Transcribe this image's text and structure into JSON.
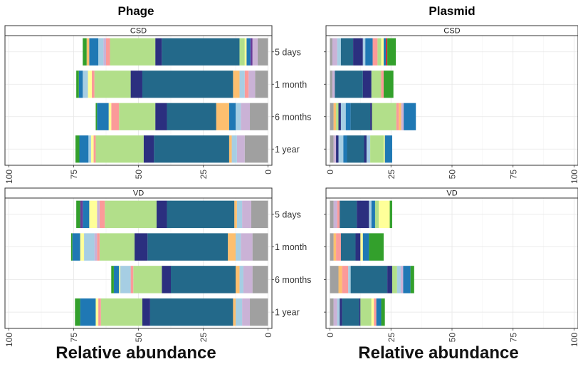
{
  "figure": {
    "phage_title": "Phage",
    "plasmid_title": "Plasmid",
    "phage_xlabel": "Relative abundance",
    "plasmid_xlabel": "Relative abundance"
  },
  "chart_data": [
    {
      "type": "bar",
      "orientation": "horizontal-stacked",
      "panel_group": "Phage",
      "facet": "CSD",
      "categories": [
        "5 days",
        "1 month",
        "6 months",
        "1 year"
      ],
      "xlim": [
        100,
        0
      ],
      "x_reversed": true,
      "ticks": [
        100,
        75,
        50,
        25,
        0
      ],
      "grid": true,
      "stacks": [
        [
          [
            "#A0A0A0",
            4.0
          ],
          [
            "#CAB2D6",
            2.0
          ],
          [
            "#6A3D9A",
            0.8
          ],
          [
            "#1F78B4",
            1.5
          ],
          [
            "#FFFF99",
            0.7
          ],
          [
            "#B2DF8A",
            2.0
          ],
          [
            "#23698A",
            30.0
          ],
          [
            "#2B2F7F",
            2.5
          ],
          [
            "#B2DF8A",
            17.5
          ],
          [
            "#FB9A99",
            1.5
          ],
          [
            "#CAB2D6",
            1.0
          ],
          [
            "#A6CEE3",
            2.0
          ],
          [
            "#1F78B4",
            3.5
          ],
          [
            "#FDBF6F",
            1.0
          ],
          [
            "#33A02C",
            1.5
          ]
        ],
        [
          [
            "#A0A0A0",
            5.0
          ],
          [
            "#CAB2D6",
            2.5
          ],
          [
            "#FB9A99",
            1.5
          ],
          [
            "#A6CEE3",
            2.0
          ],
          [
            "#FDBF6F",
            2.5
          ],
          [
            "#23698A",
            35.0
          ],
          [
            "#2B2F7F",
            4.5
          ],
          [
            "#B2DF8A",
            14.0
          ],
          [
            "#FB9A99",
            1.0
          ],
          [
            "#FFFF99",
            1.5
          ],
          [
            "#A6CEE3",
            2.0
          ],
          [
            "#1F78B4",
            1.5
          ],
          [
            "#33A02C",
            1.0
          ]
        ],
        [
          [
            "#A0A0A0",
            7.0
          ],
          [
            "#CAB2D6",
            3.5
          ],
          [
            "#A6CEE3",
            2.0
          ],
          [
            "#1F78B4",
            2.5
          ],
          [
            "#FDBF6F",
            5.0
          ],
          [
            "#23698A",
            19.0
          ],
          [
            "#2B2F7F",
            4.5
          ],
          [
            "#B2DF8A",
            14.0
          ],
          [
            "#FB9A99",
            3.0
          ],
          [
            "#FFFF99",
            1.0
          ],
          [
            "#1F78B4",
            4.5
          ],
          [
            "#33A02C",
            0.5
          ]
        ],
        [
          [
            "#A0A0A0",
            9.0
          ],
          [
            "#CAB2D6",
            3.0
          ],
          [
            "#A6CEE3",
            2.0
          ],
          [
            "#FDBF6F",
            1.0
          ],
          [
            "#23698A",
            29.0
          ],
          [
            "#2B2F7F",
            4.0
          ],
          [
            "#B2DF8A",
            18.5
          ],
          [
            "#FB9A99",
            0.8
          ],
          [
            "#FFFF99",
            1.0
          ],
          [
            "#A6CEE3",
            1.0
          ],
          [
            "#1F78B4",
            3.5
          ],
          [
            "#33A02C",
            1.5
          ]
        ]
      ]
    },
    {
      "type": "bar",
      "orientation": "horizontal-stacked",
      "panel_group": "Plasmid",
      "facet": "CSD",
      "categories": [
        "5 days",
        "1 month",
        "6 months",
        "1 year"
      ],
      "xlim": [
        0,
        100
      ],
      "ticks": [
        0,
        25,
        50,
        75,
        100
      ],
      "grid": true,
      "stacks": [
        [
          [
            "#A0A0A0",
            1.0
          ],
          [
            "#CAB2D6",
            2.0
          ],
          [
            "#A6CEE3",
            1.5
          ],
          [
            "#23698A",
            5.0
          ],
          [
            "#2B2F7F",
            4.0
          ],
          [
            "#A6CEE3",
            1.0
          ],
          [
            "#1F78B4",
            3.0
          ],
          [
            "#FB9A99",
            2.0
          ],
          [
            "#B2DF8A",
            1.5
          ],
          [
            "#FFFF99",
            1.0
          ],
          [
            "#1F78B4",
            1.0
          ],
          [
            "#E31A1C",
            0.5
          ],
          [
            "#33A02C",
            3.5
          ]
        ],
        [
          [
            "#A0A0A0",
            1.0
          ],
          [
            "#CAB2D6",
            1.0
          ],
          [
            "#23698A",
            11.5
          ],
          [
            "#2B2F7F",
            3.5
          ],
          [
            "#B2DF8A",
            4.0
          ],
          [
            "#FB9A99",
            1.0
          ],
          [
            "#33A02C",
            4.0
          ]
        ],
        [
          [
            "#A0A0A0",
            1.5
          ],
          [
            "#FDBF6F",
            1.0
          ],
          [
            "#B2DF8A",
            1.0
          ],
          [
            "#2B2F7F",
            1.0
          ],
          [
            "#A6CEE3",
            2.0
          ],
          [
            "#1F78B4",
            2.0
          ],
          [
            "#23698A",
            8.0
          ],
          [
            "#2B2F7F",
            0.7
          ],
          [
            "#B2DF8A",
            10.0
          ],
          [
            "#FB9A99",
            1.0
          ],
          [
            "#FDBF6F",
            1.0
          ],
          [
            "#CAB2D6",
            1.0
          ],
          [
            "#1F78B4",
            5.0
          ]
        ],
        [
          [
            "#A0A0A0",
            1.5
          ],
          [
            "#CAB2D6",
            1.0
          ],
          [
            "#2B2F7F",
            1.0
          ],
          [
            "#A6CEE3",
            2.0
          ],
          [
            "#1F78B4",
            1.5
          ],
          [
            "#23698A",
            7.0
          ],
          [
            "#2B2F7F",
            1.0
          ],
          [
            "#A6CEE3",
            1.5
          ],
          [
            "#B2DF8A",
            5.5
          ],
          [
            "#FFFF99",
            0.5
          ],
          [
            "#1F78B4",
            3.0
          ]
        ]
      ]
    },
    {
      "type": "bar",
      "orientation": "horizontal-stacked",
      "panel_group": "Phage",
      "facet": "VD",
      "categories": [
        "5 days",
        "1 month",
        "6 months",
        "1 year"
      ],
      "xlim": [
        100,
        0
      ],
      "x_reversed": true,
      "ticks": [
        100,
        75,
        50,
        25,
        0
      ],
      "grid": true,
      "stacks": [
        [
          [
            "#A0A0A0",
            6.5
          ],
          [
            "#CAB2D6",
            3.5
          ],
          [
            "#A6CEE3",
            2.0
          ],
          [
            "#FDBF6F",
            1.0
          ],
          [
            "#23698A",
            26.0
          ],
          [
            "#2B2F7F",
            4.0
          ],
          [
            "#B2DF8A",
            20.0
          ],
          [
            "#FB9A99",
            2.0
          ],
          [
            "#CAB2D6",
            1.0
          ],
          [
            "#FFFF99",
            3.0
          ],
          [
            "#1F78B4",
            2.5
          ],
          [
            "#6A3D9A",
            1.0
          ],
          [
            "#33A02C",
            1.5
          ]
        ],
        [
          [
            "#A0A0A0",
            6.0
          ],
          [
            "#CAB2D6",
            4.5
          ],
          [
            "#A6CEE3",
            2.0
          ],
          [
            "#FDBF6F",
            3.0
          ],
          [
            "#23698A",
            31.0
          ],
          [
            "#2B2F7F",
            5.0
          ],
          [
            "#B2DF8A",
            13.5
          ],
          [
            "#FB9A99",
            1.0
          ],
          [
            "#CAB2D6",
            1.0
          ],
          [
            "#A6CEE3",
            4.0
          ],
          [
            "#FFFF99",
            1.5
          ],
          [
            "#1F78B4",
            3.0
          ],
          [
            "#33A02C",
            0.5
          ]
        ],
        [
          [
            "#A0A0A0",
            6.0
          ],
          [
            "#CAB2D6",
            3.5
          ],
          [
            "#A6CEE3",
            1.5
          ],
          [
            "#FDBF6F",
            1.5
          ],
          [
            "#23698A",
            25.0
          ],
          [
            "#2B2F7F",
            3.5
          ],
          [
            "#B2DF8A",
            11.0
          ],
          [
            "#FB9A99",
            1.0
          ],
          [
            "#A6CEE3",
            4.0
          ],
          [
            "#FFFF99",
            0.5
          ],
          [
            "#1F78B4",
            2.0
          ],
          [
            "#33A02C",
            1.0
          ]
        ],
        [
          [
            "#A0A0A0",
            7.0
          ],
          [
            "#CAB2D6",
            3.0
          ],
          [
            "#A6CEE3",
            2.5
          ],
          [
            "#FDBF6F",
            1.0
          ],
          [
            "#23698A",
            32.0
          ],
          [
            "#2B2F7F",
            3.0
          ],
          [
            "#B2DF8A",
            16.0
          ],
          [
            "#FB9A99",
            1.0
          ],
          [
            "#FFFF99",
            1.0
          ],
          [
            "#1F78B4",
            6.0
          ],
          [
            "#33A02C",
            2.0
          ]
        ]
      ]
    },
    {
      "type": "bar",
      "orientation": "horizontal-stacked",
      "panel_group": "Plasmid",
      "facet": "VD",
      "categories": [
        "5 days",
        "1 month",
        "6 months",
        "1 year"
      ],
      "xlim": [
        0,
        100
      ],
      "ticks": [
        0,
        25,
        50,
        75,
        100
      ],
      "grid": true,
      "stacks": [
        [
          [
            "#A0A0A0",
            1.5
          ],
          [
            "#CAB2D6",
            1.5
          ],
          [
            "#FB9A99",
            1.0
          ],
          [
            "#23698A",
            7.0
          ],
          [
            "#2B2F7F",
            5.0
          ],
          [
            "#A6CEE3",
            1.0
          ],
          [
            "#1F78B4",
            1.5
          ],
          [
            "#B2DF8A",
            1.5
          ],
          [
            "#FFFF99",
            4.5
          ],
          [
            "#33A02C",
            1.0
          ]
        ],
        [
          [
            "#A0A0A0",
            1.5
          ],
          [
            "#FDBF6F",
            1.0
          ],
          [
            "#FB9A99",
            2.0
          ],
          [
            "#23698A",
            6.0
          ],
          [
            "#2B2F7F",
            2.0
          ],
          [
            "#FFFF99",
            1.0
          ],
          [
            "#1F78B4",
            2.5
          ],
          [
            "#33A02C",
            6.0
          ]
        ],
        [
          [
            "#A0A0A0",
            3.5
          ],
          [
            "#FDBF6F",
            1.5
          ],
          [
            "#FB9A99",
            2.5
          ],
          [
            "#A6CEE3",
            1.0
          ],
          [
            "#23698A",
            15.0
          ],
          [
            "#2B2F7F",
            2.0
          ],
          [
            "#B2DF8A",
            2.0
          ],
          [
            "#A6CEE3",
            1.5
          ],
          [
            "#CAB2D6",
            1.0
          ],
          [
            "#1F78B4",
            3.0
          ],
          [
            "#33A02C",
            1.5
          ]
        ],
        [
          [
            "#A0A0A0",
            1.5
          ],
          [
            "#CAB2D6",
            1.5
          ],
          [
            "#A6CEE3",
            1.0
          ],
          [
            "#2B2F7F",
            1.0
          ],
          [
            "#23698A",
            7.0
          ],
          [
            "#2B2F7F",
            0.5
          ],
          [
            "#B2DF8A",
            4.5
          ],
          [
            "#FFFF99",
            1.0
          ],
          [
            "#FB9A99",
            1.0
          ],
          [
            "#1F78B4",
            2.0
          ],
          [
            "#33A02C",
            1.5
          ]
        ]
      ]
    }
  ]
}
